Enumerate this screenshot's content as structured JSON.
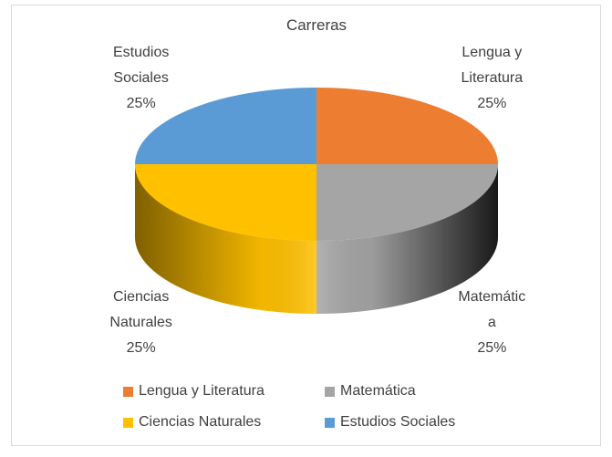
{
  "chart_data": {
    "type": "pie",
    "title": "Carreras",
    "categories": [
      "Lengua y Literatura",
      "Matemática",
      "Ciencias Naturales",
      "Estudios Sociales"
    ],
    "values": [
      25,
      25,
      25,
      25
    ],
    "value_labels": [
      "25%",
      "25%",
      "25%",
      "25%"
    ],
    "colors": [
      "#ED7D31",
      "#A5A5A5",
      "#FFC000",
      "#5B9BD5"
    ],
    "legend": "bottom",
    "3d": true
  }
}
